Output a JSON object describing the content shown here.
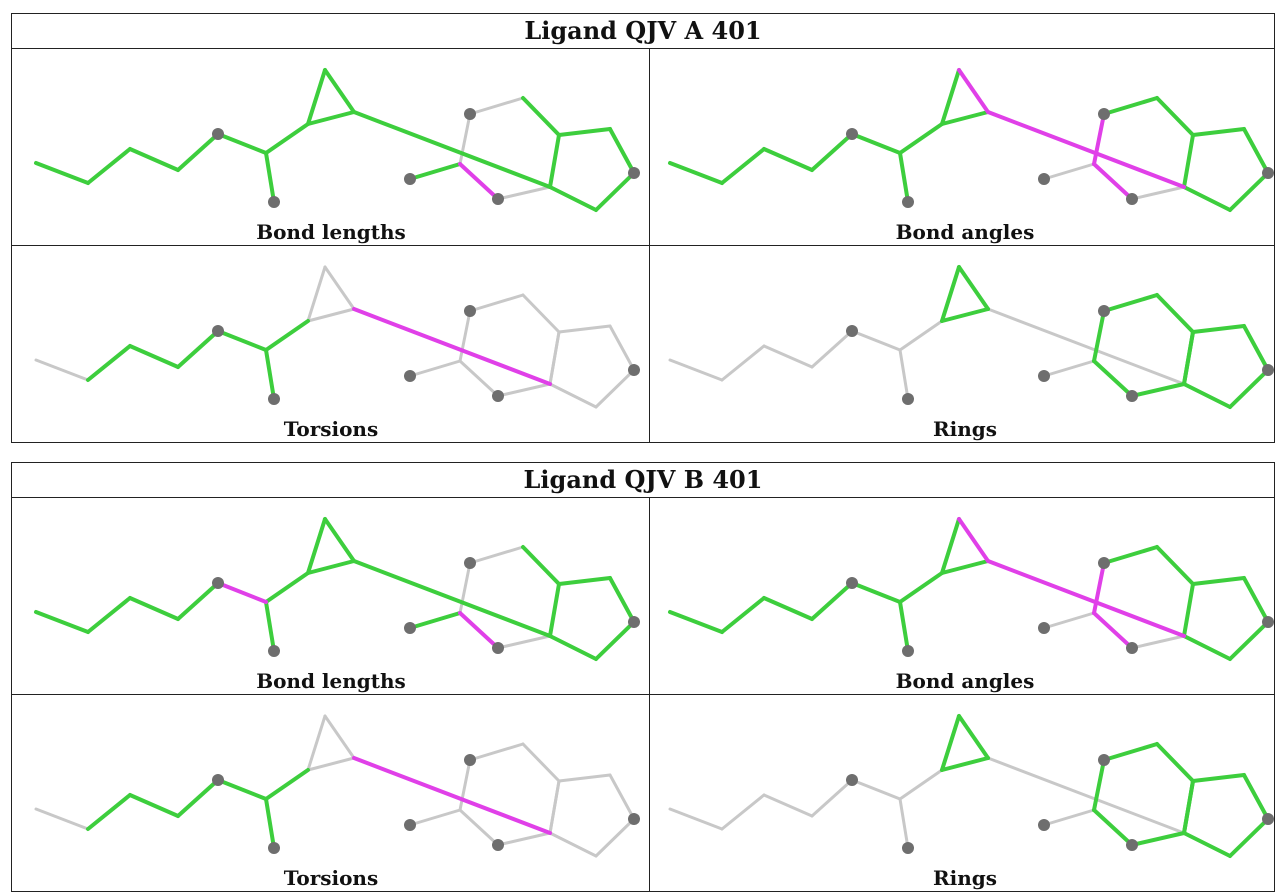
{
  "colors": {
    "green": "#3dce3d",
    "magenta": "#e040e8",
    "grey": "#c8c8c8",
    "atom": "#6e6e6e"
  },
  "blocks": [
    {
      "title": "Ligand QJV A 401",
      "panels": [
        {
          "caption": "Bond lengths",
          "hl": {
            "b1": "green",
            "b2": "green",
            "b3": "green",
            "b4": "green",
            "b5": "green",
            "b6": "green",
            "b7": "green",
            "b8": "green",
            "b9": "green",
            "b10": "green",
            "b11": "green",
            "b12": "grey",
            "b13": "grey",
            "b14": "green",
            "b15": "magenta",
            "b16": "grey",
            "b17": "grey",
            "b18": "green",
            "b19": "green",
            "b20": "green",
            "b21": "green",
            "b22": "green",
            "b23": "green"
          }
        },
        {
          "caption": "Bond angles",
          "hl": {
            "b1": "green",
            "b2": "green",
            "b3": "green",
            "b4": "green",
            "b5": "green",
            "b6": "green",
            "b7": "green",
            "b8": "green",
            "b9": "magenta",
            "b10": "green",
            "b11": "magenta",
            "b12": "magenta",
            "b13": "green",
            "b14": "grey",
            "b15": "magenta",
            "b16": "grey",
            "b17": "grey",
            "b18": "green",
            "b19": "green",
            "b20": "green",
            "b21": "green",
            "b22": "green",
            "b23": "green"
          }
        },
        {
          "caption": "Torsions",
          "hl": {
            "b1": "grey",
            "b2": "green",
            "b3": "green",
            "b4": "green",
            "b5": "green",
            "b6": "green",
            "b7": "green",
            "b8": "grey",
            "b9": "grey",
            "b10": "grey",
            "b11": "magenta",
            "b12": "grey",
            "b13": "grey",
            "b14": "grey",
            "b15": "grey",
            "b16": "grey",
            "b17": "grey",
            "b18": "grey",
            "b19": "grey",
            "b20": "grey",
            "b21": "grey",
            "b22": "grey",
            "b23": "grey"
          }
        },
        {
          "caption": "Rings",
          "hl": {
            "b1": "grey",
            "b2": "grey",
            "b3": "grey",
            "b4": "grey",
            "b5": "grey",
            "b6": "grey",
            "b7": "grey",
            "b8": "green",
            "b9": "green",
            "b10": "green",
            "b11": "grey",
            "b12": "green",
            "b13": "green",
            "b14": "grey",
            "b15": "green",
            "b16": "green",
            "b17": "green",
            "b18": "green",
            "b19": "green",
            "b20": "green",
            "b21": "green",
            "b22": "green",
            "b23": "green"
          }
        }
      ]
    },
    {
      "title": "Ligand QJV B 401",
      "panels": [
        {
          "caption": "Bond lengths",
          "hl": {
            "b1": "green",
            "b2": "green",
            "b3": "green",
            "b4": "green",
            "b5": "magenta",
            "b6": "green",
            "b7": "green",
            "b8": "green",
            "b9": "green",
            "b10": "green",
            "b11": "green",
            "b12": "grey",
            "b13": "grey",
            "b14": "green",
            "b15": "magenta",
            "b16": "grey",
            "b17": "grey",
            "b18": "green",
            "b19": "green",
            "b20": "green",
            "b21": "green",
            "b22": "green",
            "b23": "green"
          }
        },
        {
          "caption": "Bond angles",
          "hl": {
            "b1": "green",
            "b2": "green",
            "b3": "green",
            "b4": "green",
            "b5": "green",
            "b6": "green",
            "b7": "green",
            "b8": "green",
            "b9": "magenta",
            "b10": "green",
            "b11": "magenta",
            "b12": "magenta",
            "b13": "green",
            "b14": "grey",
            "b15": "magenta",
            "b16": "grey",
            "b17": "grey",
            "b18": "green",
            "b19": "green",
            "b20": "green",
            "b21": "green",
            "b22": "green",
            "b23": "green"
          }
        },
        {
          "caption": "Torsions",
          "hl": {
            "b1": "grey",
            "b2": "green",
            "b3": "green",
            "b4": "green",
            "b5": "green",
            "b6": "green",
            "b7": "green",
            "b8": "grey",
            "b9": "grey",
            "b10": "grey",
            "b11": "magenta",
            "b12": "grey",
            "b13": "grey",
            "b14": "grey",
            "b15": "grey",
            "b16": "grey",
            "b17": "grey",
            "b18": "grey",
            "b19": "grey",
            "b20": "grey",
            "b21": "grey",
            "b22": "grey",
            "b23": "grey"
          }
        },
        {
          "caption": "Rings",
          "hl": {
            "b1": "grey",
            "b2": "grey",
            "b3": "grey",
            "b4": "grey",
            "b5": "grey",
            "b6": "grey",
            "b7": "grey",
            "b8": "green",
            "b9": "green",
            "b10": "green",
            "b11": "grey",
            "b12": "green",
            "b13": "green",
            "b14": "grey",
            "b15": "green",
            "b16": "green",
            "b17": "green",
            "b18": "green",
            "b19": "green",
            "b20": "green",
            "b21": "green",
            "b22": "green",
            "b23": "green"
          }
        }
      ]
    }
  ]
}
